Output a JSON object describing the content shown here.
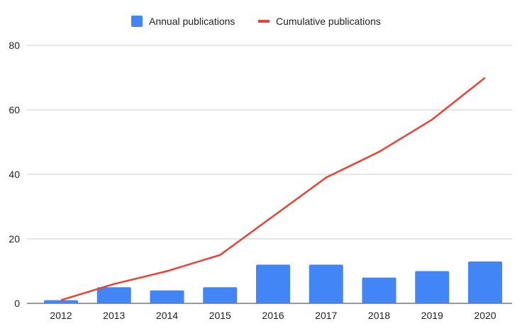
{
  "chart_data": {
    "type": "bar+line",
    "categories": [
      "2012",
      "2013",
      "2014",
      "2015",
      "2016",
      "2017",
      "2018",
      "2019",
      "2020"
    ],
    "series": [
      {
        "name": "Annual publications",
        "type": "bar",
        "color": "#4285f4",
        "values": [
          1,
          5,
          4,
          5,
          12,
          12,
          8,
          10,
          13
        ]
      },
      {
        "name": "Cumulative publications",
        "type": "line",
        "color": "#ea4335",
        "values": [
          1,
          6,
          10,
          15,
          27,
          39,
          47,
          57,
          70
        ]
      }
    ],
    "yticks": [
      0,
      20,
      40,
      60,
      80
    ],
    "ylim": [
      0,
      80
    ],
    "grid": true,
    "legend": "top-center",
    "title": "",
    "xlabel": "",
    "ylabel": ""
  }
}
